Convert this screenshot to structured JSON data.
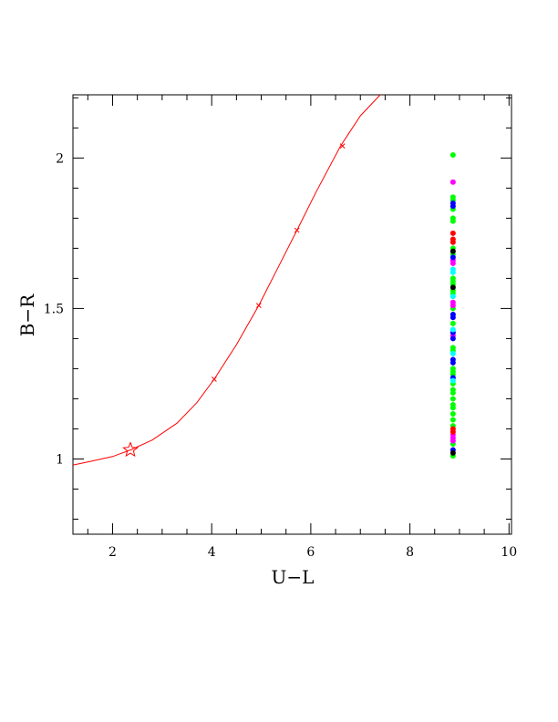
{
  "chart_data": {
    "type": "scatter",
    "title": "",
    "xlabel": "U−L",
    "ylabel": "B−R",
    "xlim": [
      1.2,
      10.05
    ],
    "ylim": [
      0.75,
      2.21
    ],
    "x_ticks": [
      2,
      4,
      6,
      8,
      10
    ],
    "y_ticks": [
      1,
      1.5,
      2
    ],
    "x_tick_labels": [
      "2",
      "4",
      "6",
      "8",
      "10"
    ],
    "y_tick_labels": [
      "1",
      "1.5",
      "2"
    ],
    "grid": false,
    "legend": "none",
    "curve": {
      "color": "#ff0000",
      "x": [
        1.2,
        1.5,
        2.0,
        2.36,
        2.8,
        3.3,
        3.7,
        4.05,
        4.5,
        4.95,
        5.35,
        5.72,
        6.1,
        6.6,
        7.0,
        7.4
      ],
      "y": [
        0.98,
        0.99,
        1.008,
        1.03,
        1.063,
        1.119,
        1.187,
        1.265,
        1.38,
        1.51,
        1.64,
        1.76,
        1.885,
        2.04,
        2.14,
        2.21
      ]
    },
    "curve_ticks": {
      "color": "#ff0000",
      "x": [
        4.05,
        4.95,
        5.72,
        6.64
      ],
      "y": [
        1.265,
        1.51,
        1.76,
        2.04
      ]
    },
    "star_marker": {
      "x": 2.36,
      "y": 1.03,
      "color": "#ff0000"
    },
    "series": [
      {
        "color": "#00ff00",
        "x": 8.87,
        "y": [
          2.01,
          1.87,
          1.86,
          1.83,
          1.8,
          1.79,
          1.7,
          1.68,
          1.6,
          1.59,
          1.58,
          1.56,
          1.55,
          1.5,
          1.48,
          1.45,
          1.37,
          1.36,
          1.3,
          1.29,
          1.28,
          1.25,
          1.23,
          1.22,
          1.2,
          1.18,
          1.17,
          1.15,
          1.13,
          1.11,
          1.05,
          1.01
        ]
      },
      {
        "color": "#ff00ff",
        "x": 8.87,
        "y": [
          1.92,
          1.66,
          1.65,
          1.52,
          1.51,
          1.41,
          1.08,
          1.07,
          1.06
        ]
      },
      {
        "color": "#0000ff",
        "x": 8.87,
        "y": [
          1.85,
          1.84,
          1.67,
          1.48,
          1.47,
          1.42,
          1.4,
          1.33,
          1.32,
          1.27,
          1.03
        ]
      },
      {
        "color": "#ff0000",
        "x": 8.87,
        "y": [
          1.75,
          1.73,
          1.72,
          1.1,
          1.09
        ]
      },
      {
        "color": "#00ffff",
        "x": 8.87,
        "y": [
          1.63,
          1.62,
          1.54,
          1.43,
          1.35,
          1.26
        ]
      },
      {
        "color": "#000000",
        "x": 8.87,
        "y": [
          1.69,
          1.57,
          1.02
        ]
      }
    ]
  }
}
